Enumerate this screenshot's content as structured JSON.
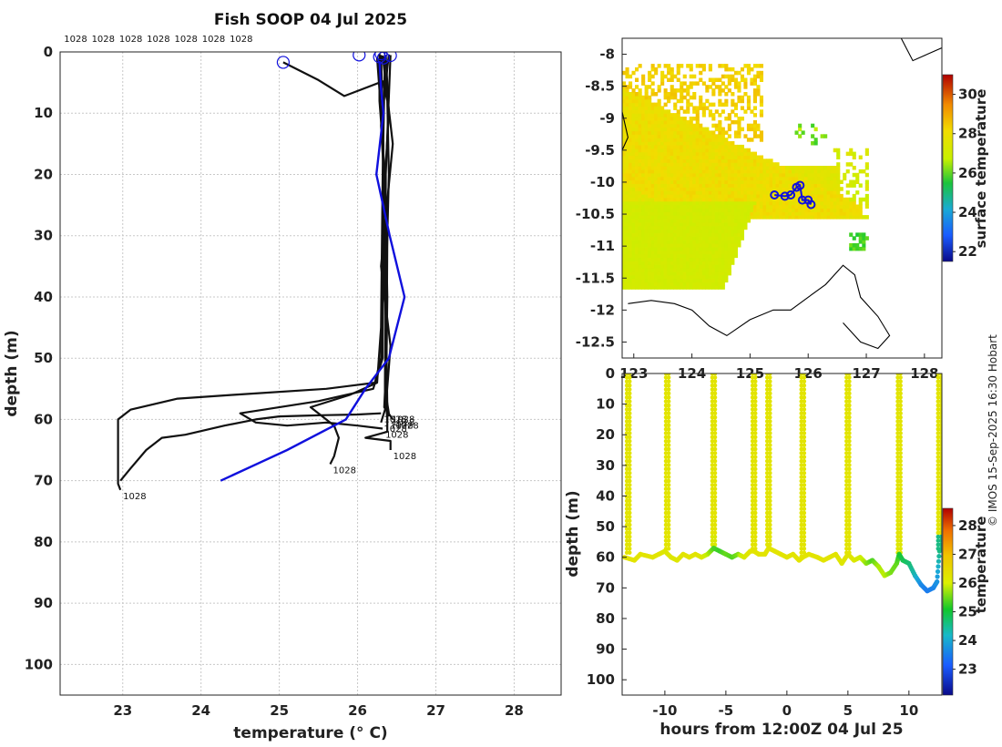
{
  "credit": "© IMOS 15-Sep-2025 16:30 Hobart",
  "chart_data": [
    {
      "type": "line",
      "title": "Fish SOOP 04 Jul 2025",
      "xlabel": "temperature (° C)",
      "ylabel": "depth (m)",
      "xlim": [
        22.2,
        28.6
      ],
      "ylim": [
        0,
        105
      ],
      "x_ticks": [
        23,
        24,
        25,
        26,
        27,
        28
      ],
      "y_ticks": [
        0,
        10,
        20,
        30,
        40,
        50,
        60,
        70,
        80,
        90,
        100
      ],
      "top_labels": [
        "1028",
        "1028",
        "1028",
        "1028",
        "1028",
        "1028",
        "1028"
      ],
      "profile_label": "1028",
      "series": [
        {
          "name": "profile-shallow-start",
          "points": [
            [
              25.05,
              1.7
            ],
            [
              25.5,
              4.6
            ],
            [
              25.83,
              7.2
            ],
            [
              26.32,
              4.8
            ],
            [
              26.38,
              8
            ],
            [
              26.4,
              20
            ],
            [
              26.36,
              40
            ],
            [
              26.35,
              55
            ],
            [
              26.38,
              60
            ]
          ]
        },
        {
          "name": "profile-warm-lower",
          "points": [
            [
              26.28,
              0.3
            ],
            [
              26.28,
              8
            ],
            [
              26.35,
              20
            ],
            [
              26.38,
              40
            ],
            [
              26.36,
              58
            ],
            [
              26.4,
              59.5
            ]
          ]
        },
        {
          "name": "profile-deep-cold",
          "points": [
            [
              26.25,
              1
            ],
            [
              26.33,
              15
            ],
            [
              26.32,
              35
            ],
            [
              26.3,
              50
            ],
            [
              26.22,
              54
            ],
            [
              25.6,
              55
            ],
            [
              24.4,
              56
            ],
            [
              23.7,
              56.6
            ],
            [
              23.1,
              58.4
            ],
            [
              22.94,
              60
            ],
            [
              22.94,
              66
            ],
            [
              22.94,
              70.5
            ],
            [
              22.97,
              71.5
            ]
          ]
        },
        {
          "name": "profile-cold-branch",
          "points": [
            [
              22.97,
              70
            ],
            [
              23.1,
              68
            ],
            [
              23.3,
              65
            ],
            [
              23.5,
              63
            ],
            [
              23.8,
              62.5
            ],
            [
              24.3,
              61
            ],
            [
              24.7,
              60
            ],
            [
              25.0,
              59.5
            ],
            [
              25.3,
              59.4
            ],
            [
              25.6,
              59.3
            ],
            [
              26.0,
              59.2
            ],
            [
              26.3,
              59
            ]
          ]
        },
        {
          "name": "profile-mid-a",
          "points": [
            [
              26.3,
              0.5
            ],
            [
              26.32,
              10
            ],
            [
              26.33,
              30
            ],
            [
              26.32,
              50
            ],
            [
              26.2,
              55
            ],
            [
              25.5,
              57
            ],
            [
              24.5,
              59
            ],
            [
              24.7,
              60.5
            ],
            [
              25.1,
              61
            ],
            [
              25.6,
              60.5
            ],
            [
              26.0,
              61
            ],
            [
              26.32,
              61.5
            ]
          ]
        },
        {
          "name": "profile-mid-b",
          "points": [
            [
              26.35,
              0.5
            ],
            [
              26.32,
              20
            ],
            [
              26.3,
              45
            ],
            [
              26.25,
              54
            ],
            [
              25.9,
              56
            ],
            [
              25.4,
              58
            ],
            [
              25.7,
              61
            ],
            [
              25.76,
              63
            ],
            [
              25.7,
              66
            ],
            [
              25.65,
              67.3
            ]
          ]
        },
        {
          "name": "profile-right-deep",
          "points": [
            [
              26.42,
              0.5
            ],
            [
              26.36,
              20
            ],
            [
              26.36,
              40
            ],
            [
              26.38,
              58
            ],
            [
              26.38,
              62
            ],
            [
              26.1,
              63
            ],
            [
              26.42,
              63.5
            ],
            [
              26.42,
              65
            ]
          ]
        },
        {
          "name": "profile-straight-1",
          "points": [
            [
              26.36,
              0.5
            ],
            [
              26.4,
              10
            ],
            [
              26.33,
              25
            ],
            [
              26.36,
              45
            ],
            [
              26.35,
              55
            ],
            [
              26.4,
              59
            ]
          ]
        },
        {
          "name": "profile-straight-2",
          "points": [
            [
              26.4,
              0.4
            ],
            [
              26.3,
              12
            ],
            [
              26.38,
              30
            ],
            [
              26.37,
              50
            ],
            [
              26.34,
              58
            ],
            [
              26.45,
              60
            ]
          ]
        },
        {
          "name": "profile-straight-3",
          "points": [
            [
              26.32,
              0.6
            ],
            [
              26.45,
              15
            ],
            [
              26.3,
              35
            ],
            [
              26.42,
              48
            ],
            [
              26.36,
              58
            ],
            [
              26.3,
              60.5
            ]
          ]
        }
      ],
      "reference": {
        "name": "reference-profile",
        "color": "#1010dd",
        "points": [
          [
            26.28,
            1.5
          ],
          [
            26.3,
            6
          ],
          [
            26.33,
            10
          ],
          [
            26.24,
            20
          ],
          [
            26.41,
            30
          ],
          [
            26.6,
            40
          ],
          [
            26.4,
            50
          ],
          [
            26.1,
            55
          ],
          [
            25.85,
            60
          ],
          [
            25.1,
            65
          ],
          [
            24.25,
            70
          ]
        ]
      },
      "surface_markers": [
        [
          25.05,
          1.7
        ],
        [
          26.02,
          0.5
        ],
        [
          26.28,
          0.8
        ],
        [
          26.33,
          1
        ],
        [
          26.42,
          0.6
        ],
        [
          26.3,
          0.3
        ]
      ]
    },
    {
      "type": "heatmap",
      "xlim": [
        122.8,
        128.3
      ],
      "ylim": [
        -12.75,
        -7.75
      ],
      "x_ticks": [
        123,
        124,
        125,
        126,
        127,
        128
      ],
      "x_tick_labels": [
        "123",
        "124",
        "125",
        "126",
        "127",
        "128"
      ],
      "y_ticks": [
        -8,
        -8.5,
        -9,
        -9.5,
        -10,
        -10.5,
        -11,
        -11.5,
        -12,
        -12.5
      ],
      "colorbar_label": "surface temperature",
      "colorbar_range": [
        21.5,
        31
      ],
      "colorbar_ticks": [
        22,
        24,
        26,
        28,
        30
      ],
      "track": [
        [
          125.42,
          -10.2
        ],
        [
          125.6,
          -10.22
        ],
        [
          125.7,
          -10.2
        ],
        [
          125.8,
          -10.08
        ],
        [
          125.86,
          -10.05
        ],
        [
          125.9,
          -10.28
        ],
        [
          126.0,
          -10.28
        ],
        [
          126.05,
          -10.35
        ]
      ],
      "coastline": [
        [
          122.9,
          -11.9
        ],
        [
          123.3,
          -11.85
        ],
        [
          123.7,
          -11.9
        ],
        [
          124.0,
          -12.0
        ],
        [
          124.3,
          -12.25
        ],
        [
          124.6,
          -12.4
        ],
        [
          125.0,
          -12.15
        ],
        [
          125.4,
          -12.0
        ],
        [
          125.7,
          -12.0
        ],
        [
          126.0,
          -11.8
        ],
        [
          126.3,
          -11.6
        ],
        [
          126.6,
          -11.3
        ],
        [
          126.8,
          -11.45
        ],
        [
          126.9,
          -11.8
        ],
        [
          127.2,
          -12.1
        ],
        [
          127.4,
          -12.4
        ],
        [
          127.2,
          -12.6
        ],
        [
          126.9,
          -12.5
        ],
        [
          126.6,
          -12.2
        ]
      ]
    },
    {
      "type": "scatter",
      "xlabel": "hours from 12:00Z 04 Jul 25",
      "ylabel": "depth (m)",
      "xlim": [
        -13.5,
        12.7
      ],
      "ylim": [
        0,
        105
      ],
      "x_ticks": [
        -10,
        -5,
        0,
        5,
        10
      ],
      "x_tick_labels": [
        "-10",
        "-5",
        "0",
        "5",
        "10"
      ],
      "y_ticks": [
        0,
        10,
        20,
        30,
        40,
        50,
        60,
        70,
        80,
        90,
        100
      ],
      "colorbar_label": "temperature",
      "colorbar_range": [
        22.1,
        28.6
      ],
      "colorbar_ticks": [
        23,
        24,
        25,
        26,
        27,
        28
      ],
      "casts": [
        {
          "time": -13.0,
          "bottom": 59,
          "temp": 26.3
        },
        {
          "time": -9.8,
          "bottom": 58,
          "temp": 26.3
        },
        {
          "time": -6.0,
          "bottom": 57,
          "temp": 26.1
        },
        {
          "time": -2.7,
          "bottom": 58,
          "temp": 26.3
        },
        {
          "time": -1.5,
          "bottom": 57,
          "temp": 26.3
        },
        {
          "time": 1.3,
          "bottom": 60,
          "temp": 26.3
        },
        {
          "time": 5.0,
          "bottom": 59,
          "temp": 26.3
        },
        {
          "time": 9.2,
          "bottom": 59,
          "temp": 26.2
        },
        {
          "time": 12.5,
          "bottom": 58,
          "temp": 24.5
        }
      ],
      "bottom_track": [
        [
          -13.3,
          60
        ],
        [
          -12.5,
          61
        ],
        [
          -12.0,
          59
        ],
        [
          -11.0,
          60
        ],
        [
          -10.5,
          59
        ],
        [
          -10.0,
          58
        ],
        [
          -9.5,
          60
        ],
        [
          -9.0,
          61
        ],
        [
          -8.5,
          59
        ],
        [
          -8.0,
          60
        ],
        [
          -7.5,
          59
        ],
        [
          -7.0,
          60
        ],
        [
          -6.5,
          59
        ],
        [
          -6.0,
          57
        ],
        [
          -5.5,
          58
        ],
        [
          -5.0,
          59
        ],
        [
          -4.5,
          60
        ],
        [
          -4.0,
          59
        ],
        [
          -3.5,
          60
        ],
        [
          -3.0,
          58
        ],
        [
          -2.7,
          58
        ],
        [
          -2.3,
          59
        ],
        [
          -1.8,
          59
        ],
        [
          -1.5,
          57
        ],
        [
          -1.0,
          58
        ],
        [
          -0.5,
          59
        ],
        [
          0.0,
          60
        ],
        [
          0.5,
          59
        ],
        [
          1.0,
          61
        ],
        [
          1.3,
          60
        ],
        [
          1.8,
          59
        ],
        [
          2.5,
          60
        ],
        [
          3.0,
          61
        ],
        [
          3.5,
          60
        ],
        [
          4.0,
          59
        ],
        [
          4.5,
          62
        ],
        [
          5.0,
          59
        ],
        [
          5.5,
          61
        ],
        [
          6.0,
          60
        ],
        [
          6.5,
          62
        ],
        [
          7.0,
          61
        ],
        [
          7.5,
          63
        ],
        [
          8.0,
          66
        ],
        [
          8.5,
          65
        ],
        [
          9.0,
          62
        ],
        [
          9.2,
          59
        ],
        [
          9.5,
          61
        ],
        [
          10.0,
          62
        ],
        [
          10.5,
          66
        ],
        [
          11.0,
          69
        ],
        [
          11.5,
          71
        ],
        [
          12.0,
          70
        ],
        [
          12.3,
          68
        ],
        [
          12.5,
          58
        ]
      ],
      "bottom_temps": [
        26.3,
        26.3,
        26.3,
        26.3,
        26.3,
        26.2,
        26.2,
        26.2,
        26.3,
        26.3,
        26.3,
        26.2,
        25.7,
        25.2,
        25.1,
        25.3,
        25.2,
        25.4,
        26.1,
        26.3,
        26.3,
        26.3,
        26.3,
        26.3,
        26.3,
        26.3,
        26.3,
        26.3,
        26.3,
        26.3,
        26.3,
        26.3,
        26.3,
        26.3,
        26.3,
        26.2,
        26.3,
        26.2,
        25.9,
        25.5,
        25.2,
        25.6,
        25.7,
        25.4,
        25.3,
        25.0,
        24.8,
        24.6,
        24.2,
        23.6,
        23.4,
        23.5,
        23.7,
        24.5
      ]
    }
  ]
}
